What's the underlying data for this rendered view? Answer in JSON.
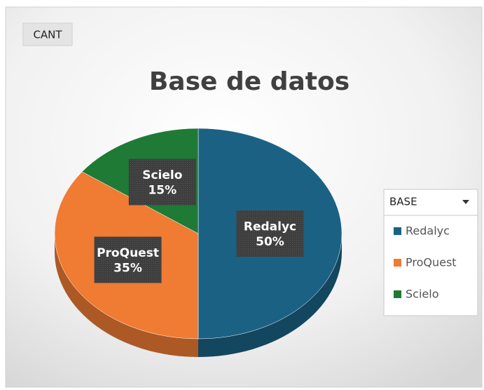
{
  "chart_data": {
    "type": "pie",
    "title": "Base de datos",
    "field_button": "CANT",
    "legend_title": "BASE",
    "categories": [
      "Redalyc",
      "ProQuest",
      "Scielo"
    ],
    "values": [
      50,
      35,
      15
    ],
    "value_labels": [
      "50%",
      "35%",
      "15%"
    ],
    "colors": [
      "#1b6184",
      "#f07b33",
      "#1f7a35"
    ]
  }
}
